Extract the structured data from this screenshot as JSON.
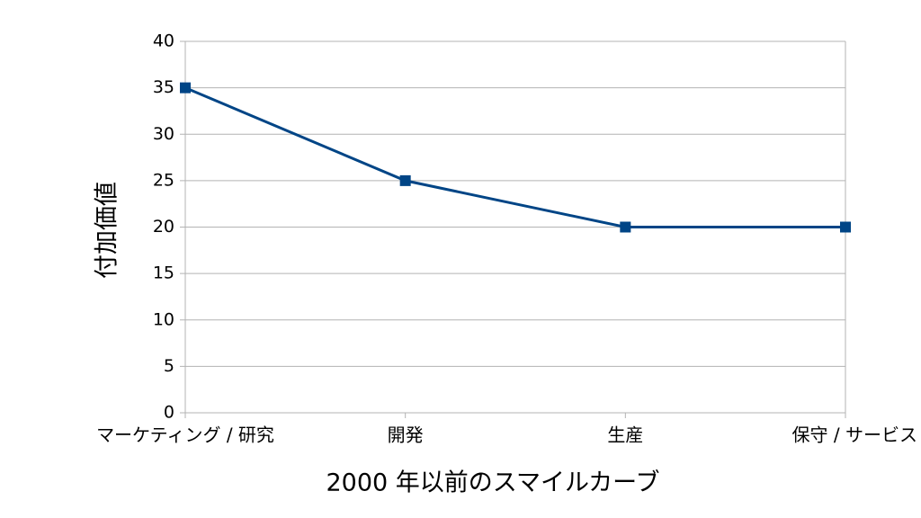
{
  "chart_data": {
    "type": "line",
    "y_label": "付加価値",
    "x_label": "2000 年以前のスマイルカーブ",
    "categories": [
      "マーケティング / 研究",
      "開発",
      "生産",
      "保守 / サービス"
    ],
    "values": [
      35,
      25,
      20,
      20
    ],
    "color": "#004586",
    "ylim": [
      0,
      40
    ],
    "yticks": [
      0,
      5,
      10,
      15,
      20,
      25,
      30,
      35,
      40
    ],
    "grid": true
  }
}
